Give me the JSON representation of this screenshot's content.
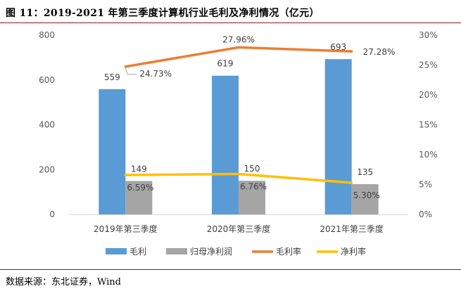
{
  "figure": {
    "title": "图 11：2019-2021 年第三季度计算机行业毛利及净利情况（亿元）",
    "source": "数据来源：东北证券，Wind"
  },
  "colors": {
    "gross_profit": "#5B9BD5",
    "net_profit": "#A5A5A5",
    "gross_margin": "#ED7D31",
    "net_margin": "#FFC000",
    "rule": "#8A1A1A"
  },
  "chart_data": {
    "type": "bar",
    "categories": [
      "2019年第三季度",
      "2020年第三季度",
      "2021年第三季度"
    ],
    "series": [
      {
        "name": "毛利",
        "kind": "bar",
        "axis": "left",
        "values": [
          559,
          619,
          693
        ],
        "labels": [
          "559",
          "619",
          "693"
        ]
      },
      {
        "name": "归母净利润",
        "kind": "bar",
        "axis": "left",
        "values": [
          149,
          150,
          135
        ],
        "labels": [
          "149",
          "150",
          "135"
        ]
      },
      {
        "name": "毛利率",
        "kind": "line",
        "axis": "right",
        "values": [
          24.73,
          27.96,
          27.28
        ],
        "labels": [
          "24.73%",
          "27.96%",
          "27.28%"
        ]
      },
      {
        "name": "净利率",
        "kind": "line",
        "axis": "right",
        "values": [
          6.59,
          6.76,
          5.3
        ],
        "labels": [
          "6.59%",
          "6.76%",
          "5.30%"
        ]
      }
    ],
    "y_left": {
      "min": 0,
      "max": 800,
      "ticks": [
        "0",
        "200",
        "400",
        "600",
        "800"
      ]
    },
    "y_right": {
      "min": 0,
      "max": 30,
      "ticks": [
        "0%",
        "5%",
        "10%",
        "15%",
        "20%",
        "25%",
        "30%"
      ]
    },
    "legend": [
      "毛利",
      "归母净利润",
      "毛利率",
      "净利率"
    ],
    "legend_position": "bottom",
    "grid": false
  }
}
